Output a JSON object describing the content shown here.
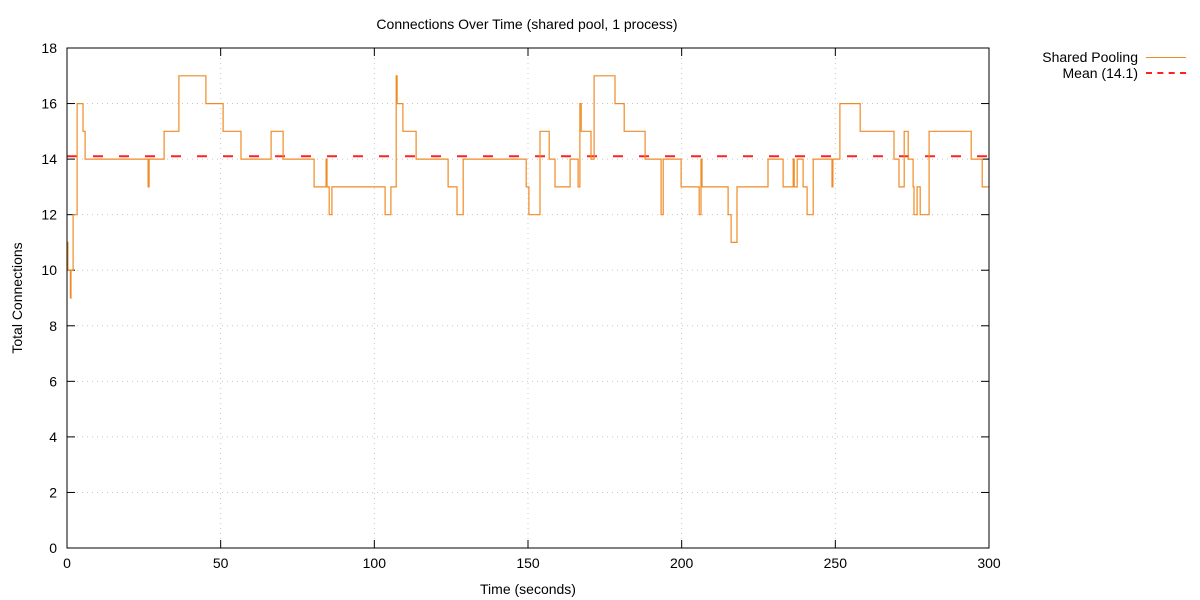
{
  "chart_data": {
    "type": "line",
    "title": "Connections Over Time (shared pool, 1 process)",
    "xlabel": "Time (seconds)",
    "ylabel": "Total Connections",
    "xlim": [
      0,
      300
    ],
    "ylim": [
      0,
      18
    ],
    "xticks": [
      0,
      50,
      100,
      150,
      200,
      250,
      300
    ],
    "yticks": [
      0,
      2,
      4,
      6,
      8,
      10,
      12,
      14,
      16,
      18
    ],
    "grid": true,
    "legend_position": "outside-top-right",
    "series": [
      {
        "name": "Shared Pooling",
        "style": "step",
        "color": "#f08a24",
        "points": [
          [
            0,
            11
          ],
          [
            0.3,
            10
          ],
          [
            1.1,
            9
          ],
          [
            1.3,
            10
          ],
          [
            2,
            12
          ],
          [
            3.3,
            16
          ],
          [
            5.2,
            15
          ],
          [
            5.9,
            14
          ],
          [
            26.4,
            13
          ],
          [
            26.7,
            14
          ],
          [
            31.6,
            15
          ],
          [
            36.4,
            17
          ],
          [
            45.2,
            16
          ],
          [
            50.8,
            15
          ],
          [
            56.6,
            14
          ],
          [
            66.4,
            15
          ],
          [
            70.3,
            14
          ],
          [
            80.4,
            13
          ],
          [
            84.3,
            14
          ],
          [
            84.6,
            13
          ],
          [
            85.3,
            12
          ],
          [
            86.2,
            13
          ],
          [
            103.5,
            12
          ],
          [
            105.4,
            13
          ],
          [
            107.1,
            17
          ],
          [
            107.4,
            16
          ],
          [
            109.3,
            15
          ],
          [
            113.6,
            14
          ],
          [
            124,
            13
          ],
          [
            126.9,
            12
          ],
          [
            128.9,
            14
          ],
          [
            149.4,
            13
          ],
          [
            150.3,
            12
          ],
          [
            153.9,
            15
          ],
          [
            156.9,
            14
          ],
          [
            158.8,
            13
          ],
          [
            163.7,
            14
          ],
          [
            166.3,
            13
          ],
          [
            166.9,
            16
          ],
          [
            167.3,
            15
          ],
          [
            170.5,
            14
          ],
          [
            171.5,
            17
          ],
          [
            178.3,
            16
          ],
          [
            181.3,
            15
          ],
          [
            188.1,
            14
          ],
          [
            193.3,
            12
          ],
          [
            194,
            14
          ],
          [
            199.8,
            13
          ],
          [
            205.7,
            12
          ],
          [
            206.3,
            14
          ],
          [
            206.6,
            13
          ],
          [
            215.1,
            12
          ],
          [
            216.1,
            11
          ],
          [
            218,
            13
          ],
          [
            228.1,
            14
          ],
          [
            233,
            13
          ],
          [
            236.3,
            14
          ],
          [
            236.6,
            13
          ],
          [
            237.6,
            14
          ],
          [
            239.5,
            13
          ],
          [
            240.8,
            12
          ],
          [
            242.8,
            14
          ],
          [
            248.9,
            13
          ],
          [
            249.2,
            14
          ],
          [
            251.5,
            16
          ],
          [
            258.1,
            15
          ],
          [
            269.1,
            14
          ],
          [
            270.7,
            13
          ],
          [
            272.4,
            15
          ],
          [
            273.7,
            14
          ],
          [
            275.3,
            13
          ],
          [
            275.6,
            12
          ],
          [
            276.6,
            13
          ],
          [
            277.6,
            12
          ],
          [
            280.5,
            15
          ],
          [
            294.2,
            14
          ],
          [
            297.8,
            13
          ],
          [
            300,
            13
          ]
        ]
      },
      {
        "name": "Mean (14.1)",
        "style": "dashed",
        "color": "#ff2020",
        "value": 14.1
      }
    ]
  },
  "legend": {
    "items": [
      {
        "label": "Shared Pooling"
      },
      {
        "label": "Mean (14.1)"
      }
    ]
  }
}
